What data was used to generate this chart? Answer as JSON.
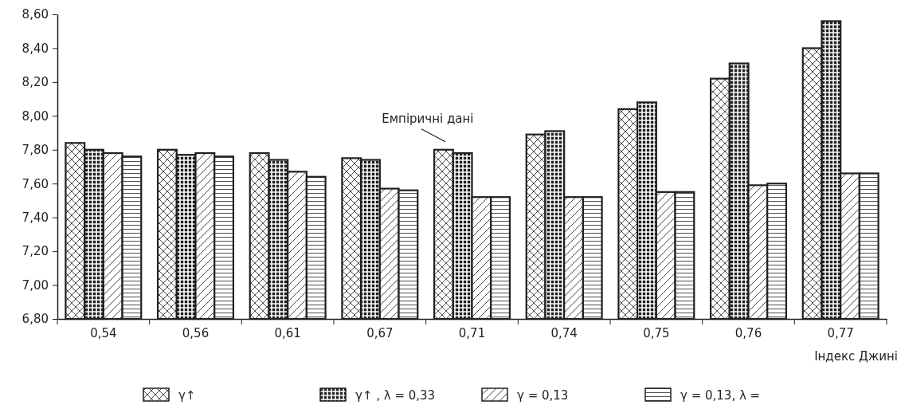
{
  "chart_data": {
    "type": "bar",
    "xlabel": "Індекс Джині",
    "categories": [
      "0,54",
      "0,56",
      "0,61",
      "0,67",
      "0,71",
      "0,74",
      "0,75",
      "0,76",
      "0,77"
    ],
    "series": [
      {
        "name": "γ↑",
        "color": "#231f20",
        "values": [
          7.84,
          7.8,
          7.78,
          7.75,
          7.8,
          7.89,
          8.04,
          8.22,
          8.4
        ]
      },
      {
        "name": "γ↑ , λ = 0,33",
        "color": "#231f20",
        "values": [
          7.8,
          7.77,
          7.74,
          7.74,
          7.78,
          7.91,
          8.08,
          8.31,
          8.56
        ]
      },
      {
        "name": "γ = 0,13",
        "color": "#231f20",
        "values": [
          7.78,
          7.78,
          7.67,
          7.57,
          7.52,
          7.52,
          7.55,
          7.59,
          7.66
        ]
      },
      {
        "name": "γ = 0,13, λ =",
        "color": "#231f20",
        "values": [
          7.76,
          7.76,
          7.64,
          7.56,
          7.52,
          7.52,
          7.55,
          7.6,
          7.66
        ]
      }
    ],
    "ylim": [
      6.8,
      8.6
    ],
    "yticks": [
      {
        "value": 6.8,
        "label": "6,80"
      },
      {
        "value": 7.0,
        "label": "7,00"
      },
      {
        "value": 7.2,
        "label": "7,20"
      },
      {
        "value": 7.4,
        "label": "7,40"
      },
      {
        "value": 7.6,
        "label": "7,60"
      },
      {
        "value": 7.8,
        "label": "7,80"
      },
      {
        "value": 8.0,
        "label": "8,00"
      },
      {
        "value": 8.2,
        "label": "8,20"
      },
      {
        "value": 8.4,
        "label": "8,40"
      },
      {
        "value": 8.6,
        "label": "8,60"
      }
    ],
    "annotations": [
      {
        "text": "Емпіричні дані",
        "x": "0,71",
        "y": 7.8
      }
    ],
    "legend": "bottom",
    "grid": false
  }
}
